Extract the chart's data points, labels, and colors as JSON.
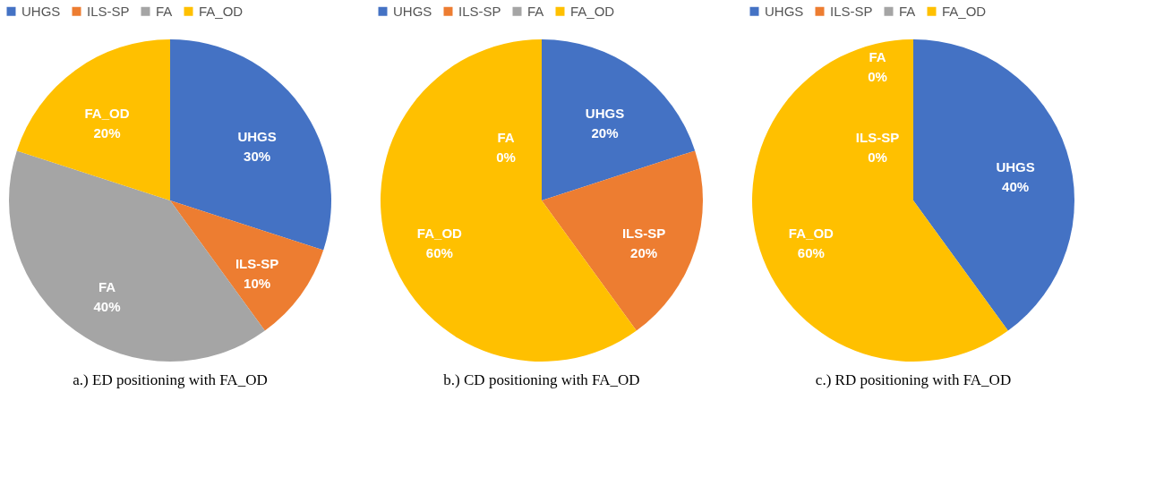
{
  "chart_data": [
    {
      "type": "pie",
      "title": "a.)  ED positioning with FA_OD",
      "categories": [
        "UHGS",
        "ILS-SP",
        "FA",
        "FA_OD"
      ],
      "values": [
        30,
        10,
        40,
        20
      ],
      "colors": [
        "#4472c4",
        "#ed7d31",
        "#a5a5a5",
        "#ffc000"
      ],
      "value_labels": [
        "30%",
        "10%",
        "40%",
        "20%"
      ],
      "legend": "top"
    },
    {
      "type": "pie",
      "title": "b.)  CD positioning with FA_OD",
      "categories": [
        "UHGS",
        "ILS-SP",
        "FA",
        "FA_OD"
      ],
      "values": [
        20,
        20,
        0,
        60
      ],
      "colors": [
        "#4472c4",
        "#ed7d31",
        "#a5a5a5",
        "#ffc000"
      ],
      "value_labels": [
        "20%",
        "20%",
        "0%",
        "60%"
      ],
      "legend": "top"
    },
    {
      "type": "pie",
      "title": "c.)  RD positioning with FA_OD",
      "categories": [
        "UHGS",
        "ILS-SP",
        "FA",
        "FA_OD"
      ],
      "values": [
        40,
        0,
        0,
        60
      ],
      "colors": [
        "#4472c4",
        "#ed7d31",
        "#a5a5a5",
        "#ffc000"
      ],
      "value_labels": [
        "40%",
        "0%",
        "0%",
        "60%"
      ],
      "legend": "top"
    }
  ]
}
